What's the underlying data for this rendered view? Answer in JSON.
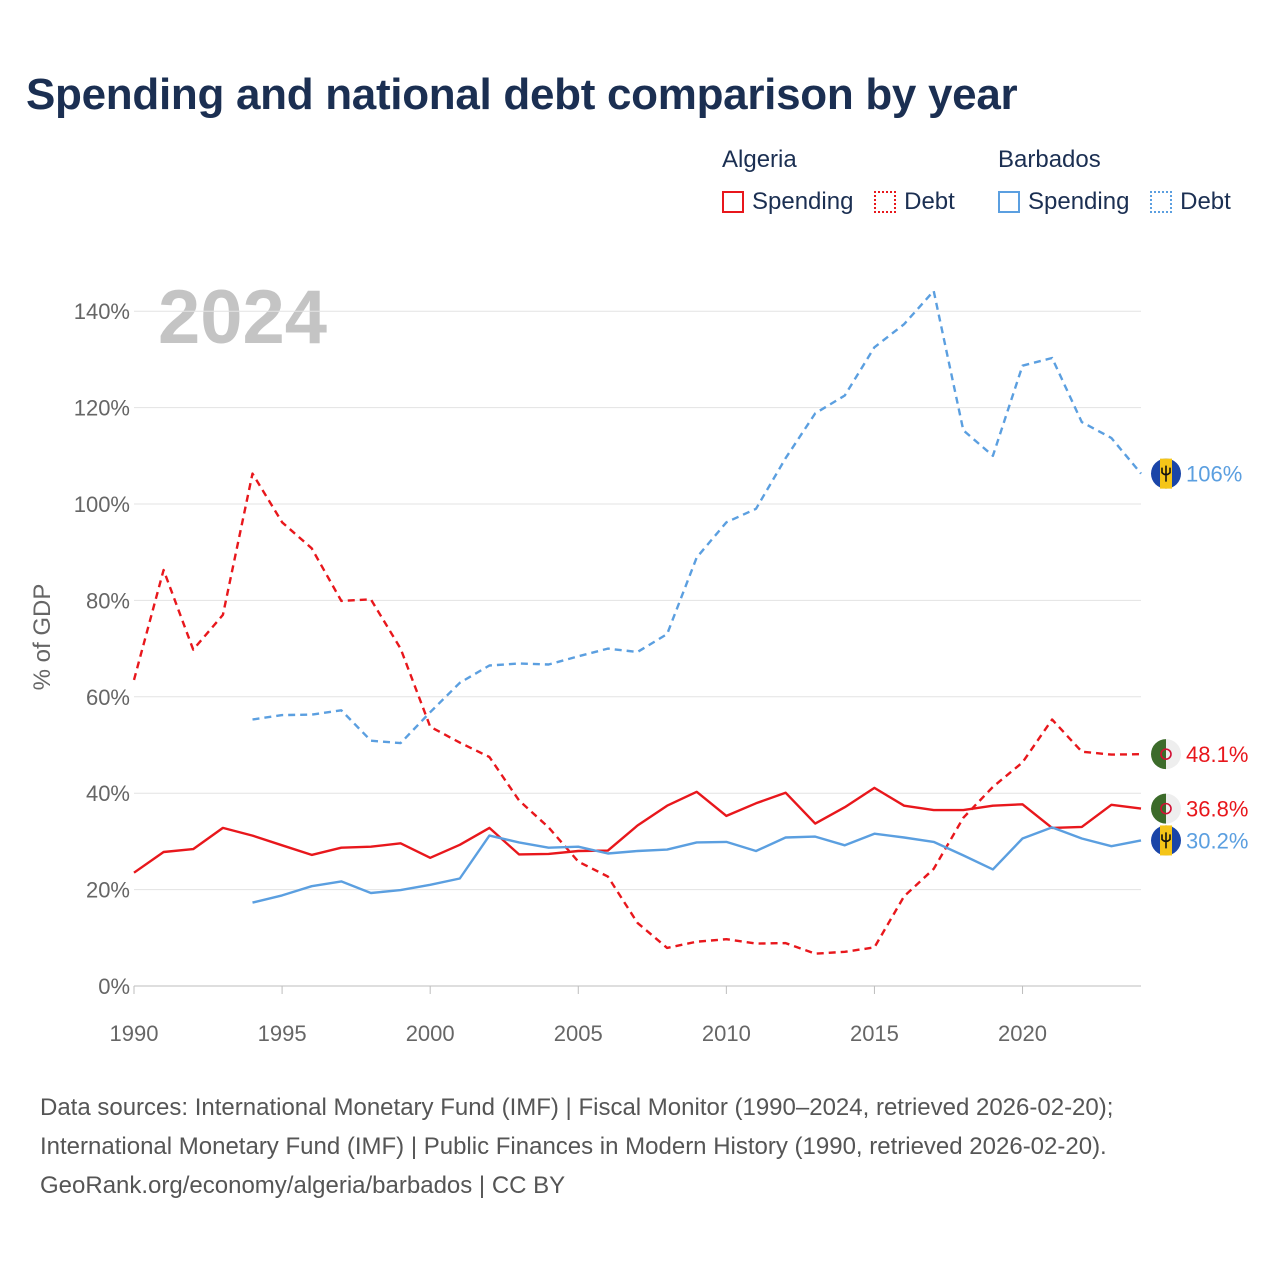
{
  "title": "Spending and national debt comparison by year",
  "legend": {
    "groups": [
      {
        "name": "Algeria",
        "color": "#e8171c",
        "items": [
          "Spending",
          "Debt"
        ]
      },
      {
        "name": "Barbados",
        "color": "#5b9fe0",
        "items": [
          "Spending",
          "Debt"
        ]
      }
    ]
  },
  "year_label": "2024",
  "footer": {
    "line1": "Data sources: International Monetary Fund (IMF) | Fiscal Monitor (1990–2024, retrieved 2026-02-20);",
    "line2": "International Monetary Fund (IMF) | Public Finances in Modern History (1990, retrieved 2026-02-20).",
    "line3": "GeoRank.org/economy/algeria/barbados | CC BY"
  },
  "chart_data": {
    "type": "line",
    "title": "Spending and national debt comparison by year",
    "xlabel": "",
    "ylabel": "% of GDP",
    "xlim": [
      1990,
      2024
    ],
    "ylim": [
      0,
      145
    ],
    "x_ticks": [
      1990,
      1995,
      2000,
      2005,
      2010,
      2015,
      2020
    ],
    "y_ticks": [
      0,
      20,
      40,
      60,
      80,
      100,
      120,
      140
    ],
    "y_tick_labels": [
      "0%",
      "20%",
      "40%",
      "60%",
      "80%",
      "100%",
      "120%",
      "140%"
    ],
    "grid": true,
    "series": [
      {
        "name": "Algeria Spending",
        "color": "#e8171c",
        "dash": "solid",
        "end_label": "36.8%",
        "x": [
          1990,
          1991,
          1992,
          1993,
          1994,
          1995,
          1996,
          1997,
          1998,
          1999,
          2000,
          2001,
          2002,
          2003,
          2004,
          2005,
          2006,
          2007,
          2008,
          2009,
          2010,
          2011,
          2012,
          2013,
          2014,
          2015,
          2016,
          2017,
          2018,
          2019,
          2020,
          2021,
          2022,
          2023,
          2024
        ],
        "values": [
          23.5,
          27.8,
          28.4,
          32.8,
          31.2,
          29.2,
          27.2,
          28.7,
          28.9,
          29.6,
          26.6,
          29.3,
          32.8,
          27.3,
          27.4,
          28.0,
          28.1,
          33.3,
          37.4,
          40.3,
          35.3,
          37.9,
          40.1,
          33.7,
          37.1,
          41.1,
          37.4,
          36.5,
          36.5,
          37.4,
          37.7,
          32.8,
          33.0,
          37.6,
          36.8
        ]
      },
      {
        "name": "Algeria Debt",
        "color": "#e8171c",
        "dash": "dashed",
        "end_label": "48.1%",
        "x": [
          1990,
          1991,
          1992,
          1993,
          1994,
          1995,
          1996,
          1997,
          1998,
          1999,
          2000,
          2001,
          2002,
          2003,
          2004,
          2005,
          2006,
          2007,
          2008,
          2009,
          2010,
          2011,
          2012,
          2013,
          2014,
          2015,
          2016,
          2017,
          2018,
          2019,
          2020,
          2021,
          2022,
          2023,
          2024
        ],
        "values": [
          63.5,
          86.3,
          69.8,
          77.0,
          106.3,
          96.2,
          90.8,
          79.9,
          80.2,
          70.0,
          53.8,
          50.5,
          47.5,
          38.5,
          32.9,
          25.8,
          22.7,
          13.1,
          7.9,
          9.2,
          9.7,
          8.8,
          8.9,
          6.7,
          7.1,
          8.0,
          18.6,
          24.3,
          34.9,
          41.3,
          46.4,
          55.3,
          48.6,
          48.0,
          48.1
        ]
      },
      {
        "name": "Barbados Spending",
        "color": "#5b9fe0",
        "dash": "solid",
        "end_label": "30.2%",
        "x": [
          1994,
          1995,
          1996,
          1997,
          1998,
          1999,
          2000,
          2001,
          2002,
          2003,
          2004,
          2005,
          2006,
          2007,
          2008,
          2009,
          2010,
          2011,
          2012,
          2013,
          2014,
          2015,
          2016,
          2017,
          2018,
          2019,
          2020,
          2021,
          2022,
          2023,
          2024
        ],
        "values": [
          17.3,
          18.8,
          20.7,
          21.7,
          19.3,
          19.9,
          21.0,
          22.3,
          31.2,
          29.8,
          28.7,
          28.9,
          27.5,
          28.0,
          28.3,
          29.8,
          29.9,
          28.0,
          30.8,
          31.0,
          29.2,
          31.6,
          30.8,
          29.9,
          27.1,
          24.2,
          30.6,
          32.9,
          30.6,
          29.0,
          30.2
        ]
      },
      {
        "name": "Barbados Debt",
        "color": "#5b9fe0",
        "dash": "dashed",
        "end_label": "106%",
        "x": [
          1994,
          1995,
          1996,
          1997,
          1998,
          1999,
          2000,
          2001,
          2002,
          2003,
          2004,
          2005,
          2006,
          2007,
          2008,
          2009,
          2010,
          2011,
          2012,
          2013,
          2014,
          2015,
          2016,
          2017,
          2018,
          2019,
          2020,
          2021,
          2022,
          2023,
          2024
        ],
        "values": [
          55.3,
          56.2,
          56.3,
          57.2,
          50.9,
          50.4,
          56.8,
          62.9,
          66.5,
          66.9,
          66.7,
          68.4,
          70.0,
          69.3,
          73.0,
          88.9,
          96.2,
          99.0,
          109.5,
          118.8,
          122.5,
          132.5,
          137.3,
          144.2,
          115.3,
          110.0,
          128.7,
          130.3,
          117.0,
          113.7,
          106.3
        ]
      }
    ]
  }
}
